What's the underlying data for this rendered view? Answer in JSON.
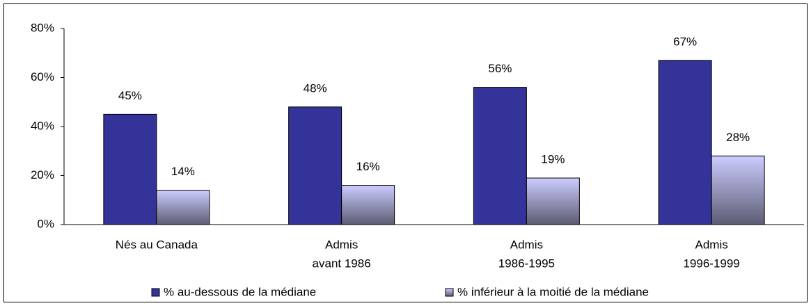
{
  "chart_data": {
    "type": "bar",
    "categories": [
      [
        "Nés au Canada"
      ],
      [
        "Admis",
        "avant 1986"
      ],
      [
        "Admis",
        "1986-1995"
      ],
      [
        "Admis",
        "1996-1999"
      ]
    ],
    "series": [
      {
        "name": "% au-dessous de la médiane",
        "color": "#333399",
        "values": [
          45,
          48,
          56,
          67
        ],
        "value_labels": [
          "45%",
          "48%",
          "56%",
          "67%"
        ]
      },
      {
        "name": "% inférieur à la moitié de la médiane",
        "color": "#ccccff",
        "values": [
          14,
          16,
          19,
          28
        ],
        "value_labels": [
          "14%",
          "16%",
          "19%",
          "28%"
        ]
      }
    ],
    "ylim": [
      0,
      80
    ],
    "yticks": [
      {
        "value": 0,
        "label": "0%"
      },
      {
        "value": 20,
        "label": "20%"
      },
      {
        "value": 40,
        "label": "40%"
      },
      {
        "value": 60,
        "label": "60%"
      },
      {
        "value": 80,
        "label": "80%"
      }
    ],
    "grid": false,
    "legend": "bottom"
  }
}
